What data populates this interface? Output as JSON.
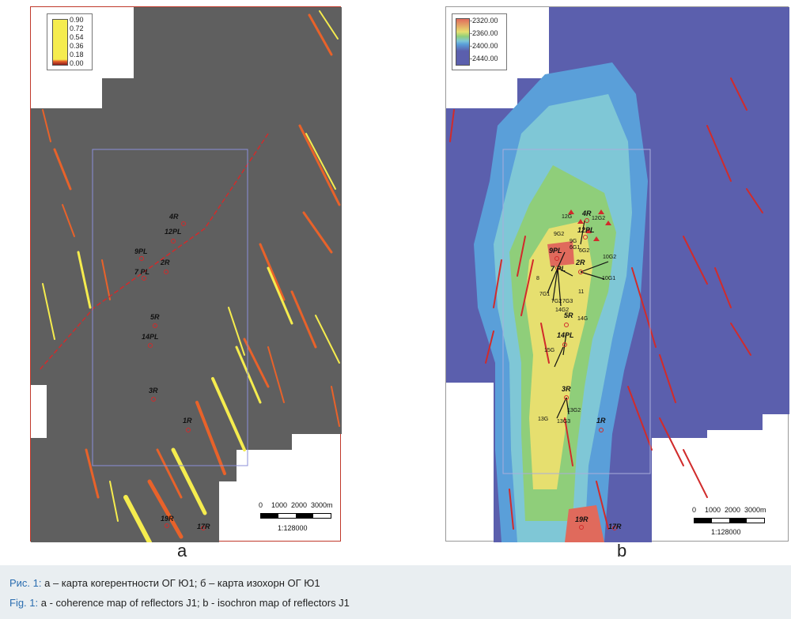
{
  "panel_a": {
    "letter": "a",
    "legend": [
      "0.90",
      "0.72",
      "0.54",
      "0.36",
      "0.18",
      "0.00"
    ],
    "wells": [
      "4R",
      "12PL",
      "9PL",
      "2R",
      "7 PL",
      "5R",
      "14PL",
      "3R",
      "1R",
      "19R",
      "17R"
    ],
    "scale": {
      "ticks": [
        "0",
        "1000",
        "2000",
        "3000m"
      ],
      "ratio": "1:128000"
    },
    "colors": {
      "background": "#5f5f5f",
      "low": "#e8622a",
      "high": "#f5ec4e"
    }
  },
  "panel_b": {
    "letter": "b",
    "legend": [
      "-2320.00",
      "-2360.00",
      "-2400.00",
      "-2440.00"
    ],
    "wells": [
      "4R",
      "12PL",
      "9PL",
      "2R",
      "7 PL",
      "5R",
      "14PL",
      "3R",
      "1R",
      "19R",
      "17R"
    ],
    "labels": [
      "12G",
      "12G2",
      "9G2",
      "9G",
      "6G1",
      "6G2",
      "10G2",
      "10G1",
      "8",
      "7G1",
      "7G2",
      "7G3",
      "11",
      "14G2",
      "14G",
      "15G",
      "13G",
      "13G2",
      "13G3"
    ],
    "scale": {
      "ticks": [
        "0",
        "1000",
        "2000",
        "3000m"
      ],
      "ratio": "1:128000"
    },
    "colors": {
      "outer": "#5b5fad",
      "blue": "#5a9fd9",
      "cyan": "#7fc7d6",
      "green": "#8fce7a",
      "yellow": "#e6df6f",
      "red": "#e06a5c"
    }
  },
  "caption": {
    "ru_prefix": "Рис. 1:",
    "ru_text": " а – карта когерентности ОГ Ю1; б – карта изохорн ОГ Ю1",
    "en_prefix": "Fig. 1:",
    "en_text": " a - coherence map of reflectors J1; b - isochron map of reflectors J1"
  }
}
